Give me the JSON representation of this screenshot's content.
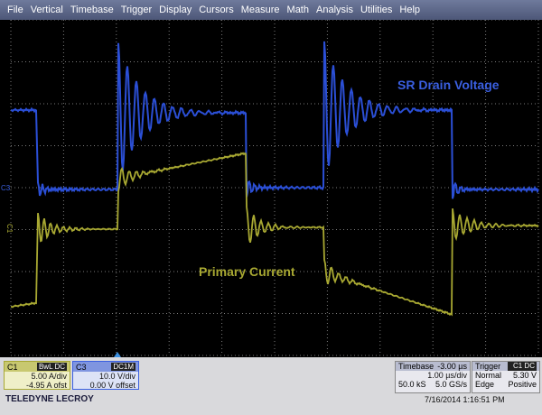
{
  "menu": [
    "File",
    "Vertical",
    "Timebase",
    "Trigger",
    "Display",
    "Cursors",
    "Measure",
    "Math",
    "Analysis",
    "Utilities",
    "Help"
  ],
  "traces": {
    "c3_label": "SR Drain Voltage",
    "c1_label": "Primary Current"
  },
  "markers": {
    "c3": "C3",
    "c1": "C1"
  },
  "c1_box": {
    "name": "C1",
    "tag": "BwL DC",
    "scale": "5.00 A/div",
    "offset": "-4.95 A ofst"
  },
  "c3_box": {
    "name": "C3",
    "tag": "DC1M",
    "scale": "10.0 V/div",
    "offset": "0.00 V offset"
  },
  "timebase": {
    "title": "Timebase",
    "delay": "-3.00 µs",
    "scale": "1.00 µs/div",
    "samples": "50.0 kS",
    "rate": "5.0 GS/s"
  },
  "trigger": {
    "title": "Trigger",
    "source": "C1 DC",
    "mode": "Normal",
    "level": "5.30 V",
    "type": "Edge",
    "slope": "Positive"
  },
  "brand": "TELEDYNE LECROY",
  "timestamp": "7/16/2014 1:16:51 PM"
}
